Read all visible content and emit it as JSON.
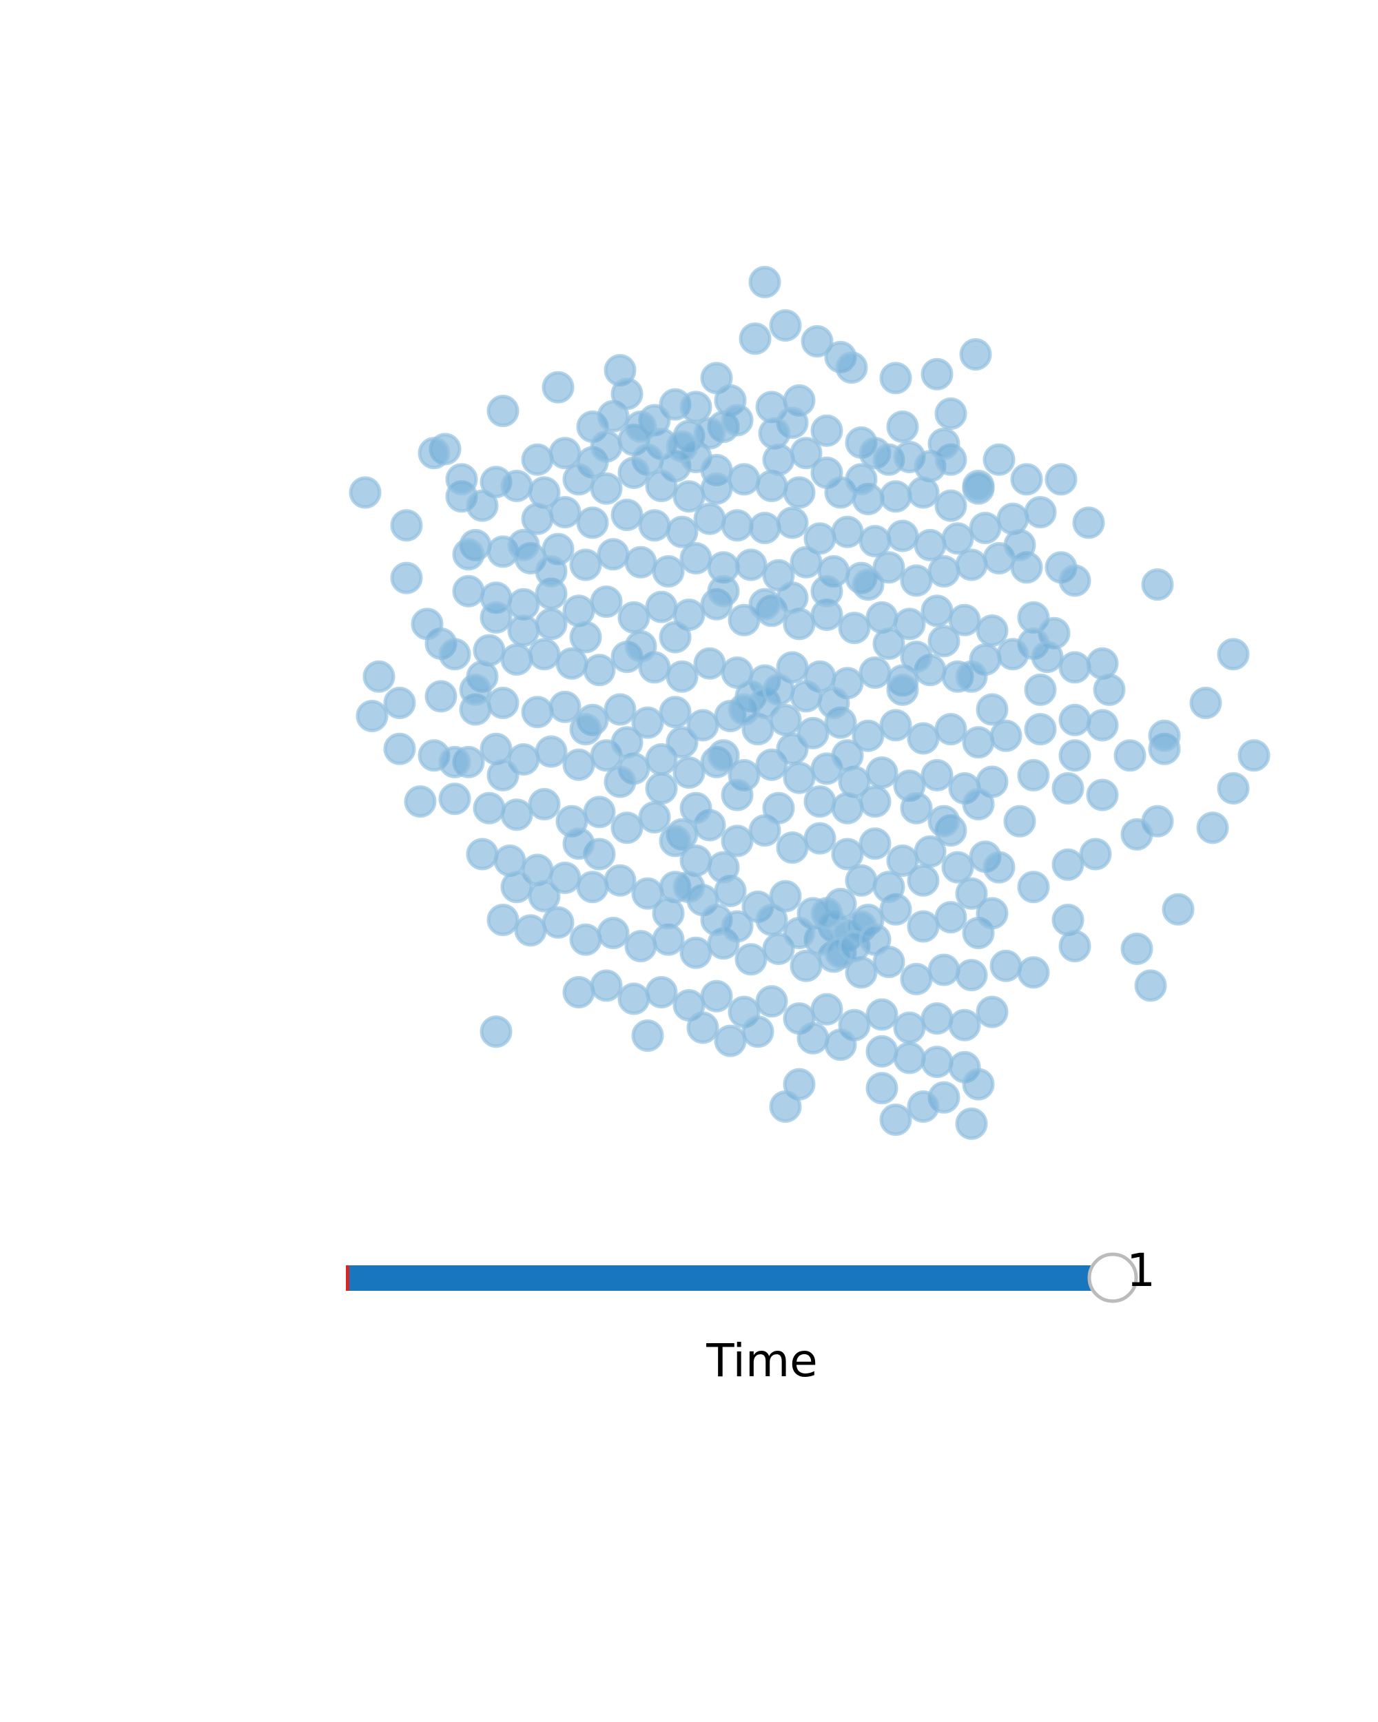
{
  "chart_data": {
    "type": "scatter",
    "title": "",
    "xlabel": "",
    "ylabel": "",
    "grid": false,
    "point_color": "#6aaad6",
    "point_stroke": "#93c0e0",
    "point_opacity": 0.55,
    "xlim": [
      -3.4,
      3.6
    ],
    "ylim": [
      -3.0,
      3.6
    ],
    "points": [
      [
        0.05,
        3.55
      ],
      [
        0.2,
        3.22
      ],
      [
        -0.02,
        3.12
      ],
      [
        0.43,
        3.1
      ],
      [
        0.6,
        2.98
      ],
      [
        0.68,
        2.9
      ],
      [
        -1.0,
        2.88
      ],
      [
        -0.3,
        2.82
      ],
      [
        1.58,
        3.0
      ],
      [
        1.0,
        2.82
      ],
      [
        1.3,
        2.85
      ],
      [
        -0.2,
        2.65
      ],
      [
        -1.85,
        2.57
      ],
      [
        0.3,
        2.65
      ],
      [
        0.1,
        2.6
      ],
      [
        -1.2,
        2.45
      ],
      [
        -1.05,
        2.53
      ],
      [
        -0.6,
        2.62
      ],
      [
        -0.45,
        2.6
      ],
      [
        -0.75,
        2.5
      ],
      [
        -0.25,
        2.45
      ],
      [
        -0.15,
        2.5
      ],
      [
        0.25,
        2.48
      ],
      [
        0.12,
        2.4
      ],
      [
        0.5,
        2.42
      ],
      [
        -0.9,
        2.35
      ],
      [
        -0.7,
        2.32
      ],
      [
        -0.5,
        2.38
      ],
      [
        -2.27,
        2.28
      ],
      [
        -1.6,
        2.2
      ],
      [
        -1.4,
        2.25
      ],
      [
        -1.2,
        2.18
      ],
      [
        -0.8,
        2.2
      ],
      [
        -0.6,
        2.15
      ],
      [
        -0.45,
        2.22
      ],
      [
        -0.3,
        2.12
      ],
      [
        0.75,
        2.33
      ],
      [
        0.85,
        2.25
      ],
      [
        0.95,
        2.2
      ],
      [
        1.1,
        2.22
      ],
      [
        1.25,
        2.15
      ],
      [
        1.4,
        2.2
      ],
      [
        -1.9,
        2.03
      ],
      [
        -1.75,
        2.0
      ],
      [
        -1.55,
        1.95
      ],
      [
        -1.3,
        2.05
      ],
      [
        -1.1,
        1.98
      ],
      [
        -0.9,
        2.1
      ],
      [
        -0.7,
        2.0
      ],
      [
        -0.5,
        1.92
      ],
      [
        -0.3,
        1.98
      ],
      [
        -0.1,
        2.05
      ],
      [
        0.1,
        2.0
      ],
      [
        0.3,
        1.95
      ],
      [
        0.5,
        2.1
      ],
      [
        0.6,
        1.95
      ],
      [
        0.8,
        1.9
      ],
      [
        1.0,
        1.92
      ],
      [
        1.2,
        1.95
      ],
      [
        1.4,
        1.85
      ],
      [
        1.6,
        1.98
      ],
      [
        -2.15,
        1.92
      ],
      [
        -2.0,
        1.85
      ],
      [
        -1.6,
        1.75
      ],
      [
        -1.4,
        1.8
      ],
      [
        -1.2,
        1.72
      ],
      [
        -0.95,
        1.78
      ],
      [
        -0.75,
        1.7
      ],
      [
        -0.55,
        1.65
      ],
      [
        -0.35,
        1.75
      ],
      [
        -0.15,
        1.7
      ],
      [
        0.05,
        1.68
      ],
      [
        0.25,
        1.72
      ],
      [
        0.45,
        1.6
      ],
      [
        0.65,
        1.65
      ],
      [
        0.85,
        1.58
      ],
      [
        1.05,
        1.62
      ],
      [
        1.25,
        1.55
      ],
      [
        1.45,
        1.6
      ],
      [
        1.65,
        1.68
      ],
      [
        1.85,
        1.75
      ],
      [
        2.4,
        1.72
      ],
      [
        -2.05,
        1.55
      ],
      [
        -1.85,
        1.5
      ],
      [
        -1.65,
        1.45
      ],
      [
        -1.45,
        1.52
      ],
      [
        -1.25,
        1.4
      ],
      [
        -1.05,
        1.48
      ],
      [
        -0.85,
        1.42
      ],
      [
        -0.65,
        1.35
      ],
      [
        -0.45,
        1.45
      ],
      [
        -0.25,
        1.38
      ],
      [
        -0.05,
        1.4
      ],
      [
        0.15,
        1.32
      ],
      [
        0.35,
        1.42
      ],
      [
        0.55,
        1.35
      ],
      [
        0.75,
        1.3
      ],
      [
        0.95,
        1.38
      ],
      [
        1.15,
        1.28
      ],
      [
        1.35,
        1.35
      ],
      [
        1.55,
        1.4
      ],
      [
        1.75,
        1.45
      ],
      [
        1.95,
        1.38
      ],
      [
        2.2,
        1.38
      ],
      [
        2.3,
        1.28
      ],
      [
        2.9,
        1.25
      ],
      [
        -2.1,
        1.2
      ],
      [
        -1.9,
        1.15
      ],
      [
        -1.7,
        1.1
      ],
      [
        -1.5,
        1.18
      ],
      [
        -1.3,
        1.05
      ],
      [
        -1.1,
        1.12
      ],
      [
        -0.9,
        1.0
      ],
      [
        -0.7,
        1.08
      ],
      [
        -0.5,
        1.02
      ],
      [
        -0.3,
        1.1
      ],
      [
        -0.1,
        0.98
      ],
      [
        0.1,
        1.05
      ],
      [
        0.3,
        0.95
      ],
      [
        0.5,
        1.02
      ],
      [
        0.7,
        0.92
      ],
      [
        0.9,
        1.0
      ],
      [
        1.1,
        0.95
      ],
      [
        1.3,
        1.05
      ],
      [
        1.5,
        0.98
      ],
      [
        1.7,
        0.9
      ],
      [
        2.0,
        1.0
      ],
      [
        2.15,
        0.88
      ],
      [
        2.0,
        0.8
      ],
      [
        -2.3,
        0.8
      ],
      [
        -2.2,
        0.72
      ],
      [
        -1.95,
        0.75
      ],
      [
        -1.75,
        0.68
      ],
      [
        -1.55,
        0.72
      ],
      [
        -1.35,
        0.65
      ],
      [
        -1.15,
        0.6
      ],
      [
        -0.95,
        0.7
      ],
      [
        -0.75,
        0.62
      ],
      [
        -0.55,
        0.55
      ],
      [
        -0.35,
        0.65
      ],
      [
        -0.15,
        0.58
      ],
      [
        0.05,
        0.52
      ],
      [
        0.25,
        0.62
      ],
      [
        0.45,
        0.55
      ],
      [
        0.65,
        0.5
      ],
      [
        0.85,
        0.58
      ],
      [
        1.05,
        0.52
      ],
      [
        1.25,
        0.6
      ],
      [
        1.45,
        0.55
      ],
      [
        1.65,
        0.68
      ],
      [
        1.85,
        0.72
      ],
      [
        2.1,
        0.7
      ],
      [
        2.3,
        0.62
      ],
      [
        2.5,
        0.65
      ],
      [
        3.45,
        0.72
      ],
      [
        -2.6,
        0.35
      ],
      [
        -2.3,
        0.4
      ],
      [
        -2.05,
        0.3
      ],
      [
        -1.85,
        0.35
      ],
      [
        -1.6,
        0.28
      ],
      [
        -1.4,
        0.32
      ],
      [
        -1.2,
        0.22
      ],
      [
        -1.0,
        0.3
      ],
      [
        -0.8,
        0.2
      ],
      [
        -0.6,
        0.28
      ],
      [
        -0.4,
        0.18
      ],
      [
        -0.2,
        0.25
      ],
      [
        0.0,
        0.15
      ],
      [
        0.2,
        0.22
      ],
      [
        0.4,
        0.12
      ],
      [
        0.6,
        0.2
      ],
      [
        0.8,
        0.1
      ],
      [
        1.0,
        0.18
      ],
      [
        1.2,
        0.08
      ],
      [
        1.4,
        0.15
      ],
      [
        1.6,
        0.05
      ],
      [
        1.8,
        0.1
      ],
      [
        2.05,
        0.15
      ],
      [
        2.3,
        0.22
      ],
      [
        2.5,
        0.18
      ],
      [
        2.95,
        0.0
      ],
      [
        3.25,
        0.35
      ],
      [
        -2.6,
        0.0
      ],
      [
        -2.35,
        -0.05
      ],
      [
        -2.1,
        -0.1
      ],
      [
        -1.9,
        0.0
      ],
      [
        -1.7,
        -0.08
      ],
      [
        -1.5,
        -0.02
      ],
      [
        -1.3,
        -0.12
      ],
      [
        -1.1,
        -0.05
      ],
      [
        -0.9,
        -0.15
      ],
      [
        -0.7,
        -0.08
      ],
      [
        -0.5,
        -0.18
      ],
      [
        -0.3,
        -0.1
      ],
      [
        -0.1,
        -0.2
      ],
      [
        0.1,
        -0.12
      ],
      [
        0.3,
        -0.22
      ],
      [
        0.5,
        -0.15
      ],
      [
        0.7,
        -0.25
      ],
      [
        0.9,
        -0.18
      ],
      [
        1.1,
        -0.28
      ],
      [
        1.3,
        -0.2
      ],
      [
        1.5,
        -0.3
      ],
      [
        1.7,
        -0.25
      ],
      [
        2.0,
        -0.2
      ],
      [
        2.25,
        -0.3
      ],
      [
        2.5,
        -0.35
      ],
      [
        2.9,
        -0.55
      ],
      [
        3.6,
        -0.05
      ],
      [
        3.45,
        -0.3
      ],
      [
        -2.45,
        -0.4
      ],
      [
        -2.2,
        -0.38
      ],
      [
        -1.95,
        -0.45
      ],
      [
        -1.75,
        -0.5
      ],
      [
        -1.55,
        -0.42
      ],
      [
        -1.35,
        -0.55
      ],
      [
        -1.15,
        -0.48
      ],
      [
        -0.95,
        -0.6
      ],
      [
        -0.75,
        -0.52
      ],
      [
        -0.55,
        -0.65
      ],
      [
        -0.35,
        -0.58
      ],
      [
        -0.15,
        -0.7
      ],
      [
        0.05,
        -0.62
      ],
      [
        0.25,
        -0.75
      ],
      [
        0.45,
        -0.68
      ],
      [
        0.65,
        -0.8
      ],
      [
        0.85,
        -0.72
      ],
      [
        1.05,
        -0.85
      ],
      [
        1.25,
        -0.78
      ],
      [
        1.45,
        -0.9
      ],
      [
        1.65,
        -0.82
      ],
      [
        2.25,
        -0.88
      ],
      [
        2.45,
        -0.8
      ],
      [
        2.75,
        -0.65
      ],
      [
        3.3,
        -0.6
      ],
      [
        -2.0,
        -0.8
      ],
      [
        -1.8,
        -0.85
      ],
      [
        -1.6,
        -0.92
      ],
      [
        -1.4,
        -0.98
      ],
      [
        -1.2,
        -1.05
      ],
      [
        -1.0,
        -1.0
      ],
      [
        -0.8,
        -1.1
      ],
      [
        -0.6,
        -1.05
      ],
      [
        -0.4,
        -1.15
      ],
      [
        -0.2,
        -1.08
      ],
      [
        0.0,
        -1.2
      ],
      [
        0.2,
        -1.12
      ],
      [
        0.4,
        -1.25
      ],
      [
        0.6,
        -1.18
      ],
      [
        0.8,
        -1.3
      ],
      [
        1.0,
        -1.22
      ],
      [
        1.2,
        -1.35
      ],
      [
        1.4,
        -1.28
      ],
      [
        1.6,
        -1.4
      ],
      [
        2.25,
        -1.3
      ],
      [
        3.05,
        -1.22
      ],
      [
        -1.85,
        -1.3
      ],
      [
        -1.65,
        -1.38
      ],
      [
        -1.45,
        -1.32
      ],
      [
        -1.25,
        -1.45
      ],
      [
        -1.05,
        -1.4
      ],
      [
        -0.85,
        -1.5
      ],
      [
        -0.65,
        -1.45
      ],
      [
        -0.45,
        -1.55
      ],
      [
        -0.25,
        -1.48
      ],
      [
        -0.05,
        -1.6
      ],
      [
        0.15,
        -1.52
      ],
      [
        0.35,
        -1.65
      ],
      [
        0.55,
        -1.58
      ],
      [
        0.75,
        -1.7
      ],
      [
        0.95,
        -1.62
      ],
      [
        1.15,
        -1.75
      ],
      [
        1.35,
        -1.68
      ],
      [
        1.55,
        -1.72
      ],
      [
        1.8,
        -1.65
      ],
      [
        2.0,
        -1.7
      ],
      [
        2.75,
        -1.52
      ],
      [
        -1.3,
        -1.85
      ],
      [
        -1.1,
        -1.8
      ],
      [
        -0.9,
        -1.9
      ],
      [
        -0.7,
        -1.85
      ],
      [
        -0.5,
        -1.95
      ],
      [
        -0.3,
        -1.88
      ],
      [
        -0.1,
        -2.0
      ],
      [
        0.1,
        -1.92
      ],
      [
        0.3,
        -2.05
      ],
      [
        0.5,
        -1.98
      ],
      [
        0.7,
        -2.1
      ],
      [
        0.9,
        -2.02
      ],
      [
        1.1,
        -2.12
      ],
      [
        1.3,
        -2.05
      ],
      [
        1.5,
        -2.1
      ],
      [
        1.7,
        -2.0
      ],
      [
        2.85,
        -1.8
      ],
      [
        -1.9,
        -2.15
      ],
      [
        -0.8,
        -2.18
      ],
      [
        -0.4,
        -2.12
      ],
      [
        -0.2,
        -2.22
      ],
      [
        0.0,
        -2.15
      ],
      [
        0.4,
        -2.2
      ],
      [
        0.6,
        -2.25
      ],
      [
        0.9,
        -2.3
      ],
      [
        1.1,
        -2.35
      ],
      [
        1.3,
        -2.38
      ],
      [
        1.5,
        -2.42
      ],
      [
        0.3,
        -2.55
      ],
      [
        0.9,
        -2.58
      ],
      [
        1.35,
        -2.65
      ],
      [
        0.2,
        -2.72
      ],
      [
        1.55,
        -2.85
      ],
      [
        1.0,
        -2.82
      ],
      [
        1.6,
        -2.55
      ],
      [
        1.2,
        -2.72
      ],
      [
        -2.85,
        1.95
      ],
      [
        -2.55,
        1.7
      ],
      [
        -2.15,
        2.05
      ],
      [
        -2.35,
        2.25
      ],
      [
        -2.1,
        1.48
      ],
      [
        -1.7,
        1.55
      ],
      [
        -1.5,
        1.35
      ],
      [
        -2.55,
        1.3
      ],
      [
        -2.75,
        0.55
      ],
      [
        -2.8,
        0.25
      ],
      [
        -2.2,
        -0.1
      ],
      [
        -1.85,
        -0.2
      ],
      [
        -2.4,
        0.95
      ],
      [
        -2.0,
        0.55
      ],
      [
        -1.7,
        0.9
      ],
      [
        -0.95,
        2.7
      ],
      [
        -0.85,
        2.45
      ],
      [
        -1.45,
        2.75
      ],
      [
        -1.1,
        2.3
      ],
      [
        -0.55,
        2.3
      ],
      [
        -0.35,
        2.4
      ],
      [
        0.15,
        2.2
      ],
      [
        0.35,
        2.25
      ],
      [
        0.75,
        2.05
      ],
      [
        1.05,
        2.45
      ],
      [
        1.4,
        2.55
      ],
      [
        1.35,
        2.32
      ],
      [
        1.75,
        2.2
      ],
      [
        1.6,
        2.0
      ],
      [
        2.2,
        2.05
      ],
      [
        1.95,
        2.05
      ],
      [
        1.9,
        1.55
      ],
      [
        2.05,
        1.8
      ],
      [
        -0.05,
        0.4
      ],
      [
        0.05,
        0.35
      ],
      [
        0.15,
        0.45
      ],
      [
        -0.1,
        0.3
      ],
      [
        0.35,
        0.4
      ],
      [
        0.55,
        0.35
      ],
      [
        0.45,
        -0.4
      ],
      [
        0.65,
        -0.45
      ],
      [
        0.85,
        -0.4
      ],
      [
        0.55,
        -1.35
      ],
      [
        0.65,
        -1.42
      ],
      [
        0.75,
        -1.35
      ],
      [
        0.45,
        -1.45
      ],
      [
        0.6,
        -1.55
      ],
      [
        0.7,
        -1.5
      ],
      [
        0.5,
        -1.25
      ],
      [
        0.3,
        -1.4
      ],
      [
        0.1,
        -1.3
      ],
      [
        -0.3,
        -1.3
      ],
      [
        -0.15,
        -1.35
      ],
      [
        0.85,
        -1.45
      ],
      [
        1.55,
        -1.1
      ],
      [
        1.7,
        -1.25
      ],
      [
        1.75,
        -0.9
      ],
      [
        1.2,
        -1.0
      ],
      [
        -0.45,
        -0.85
      ],
      [
        -0.25,
        -0.9
      ],
      [
        -1.15,
        -0.8
      ],
      [
        -1.3,
        -0.72
      ],
      [
        -1.55,
        -1.12
      ],
      [
        -1.75,
        -1.05
      ],
      [
        -0.65,
        -1.25
      ],
      [
        -0.5,
        -1.05
      ],
      [
        -1.0,
        -0.25
      ],
      [
        -0.7,
        -0.3
      ],
      [
        1.6,
        -0.42
      ],
      [
        1.9,
        -0.55
      ],
      [
        1.4,
        -0.62
      ],
      [
        2.0,
        -1.05
      ],
      [
        2.3,
        -1.5
      ],
      [
        2.3,
        -0.05
      ],
      [
        2.7,
        -0.05
      ],
      [
        2.55,
        0.45
      ],
      [
        2.95,
        0.1
      ],
      [
        2.05,
        0.45
      ],
      [
        1.05,
        0.45
      ],
      [
        0.95,
        0.8
      ],
      [
        0.8,
        1.25
      ],
      [
        0.5,
        1.2
      ],
      [
        0.25,
        1.15
      ],
      [
        0.05,
        1.1
      ],
      [
        -0.25,
        1.2
      ],
      [
        -0.6,
        0.85
      ],
      [
        -0.85,
        0.78
      ],
      [
        -1.25,
        0.85
      ],
      [
        -1.5,
        0.95
      ],
      [
        -1.9,
        1.0
      ],
      [
        -2.05,
        0.45
      ],
      [
        -1.25,
        0.15
      ],
      [
        -0.95,
        0.05
      ],
      [
        -0.55,
        0.05
      ],
      [
        -0.25,
        -0.05
      ],
      [
        0.25,
        0.0
      ],
      [
        0.65,
        -0.05
      ],
      [
        1.15,
        -0.45
      ],
      [
        1.35,
        -0.55
      ],
      [
        1.7,
        0.3
      ],
      [
        1.55,
        0.55
      ],
      [
        1.35,
        0.82
      ],
      [
        1.15,
        0.7
      ],
      [
        -0.15,
        -0.35
      ],
      [
        0.15,
        -0.45
      ],
      [
        -0.45,
        -0.45
      ],
      [
        -0.6,
        -0.7
      ],
      [
        0.95,
        -1.05
      ],
      [
        0.75,
        -1.0
      ]
    ]
  },
  "slider": {
    "value_label": "1",
    "label": "Time",
    "value_fraction": 1.0,
    "track_color": "#1776be",
    "start_marker_color": "#d62728",
    "thumb_fill": "#ffffff",
    "thumb_stroke": "#bbbbbb"
  }
}
